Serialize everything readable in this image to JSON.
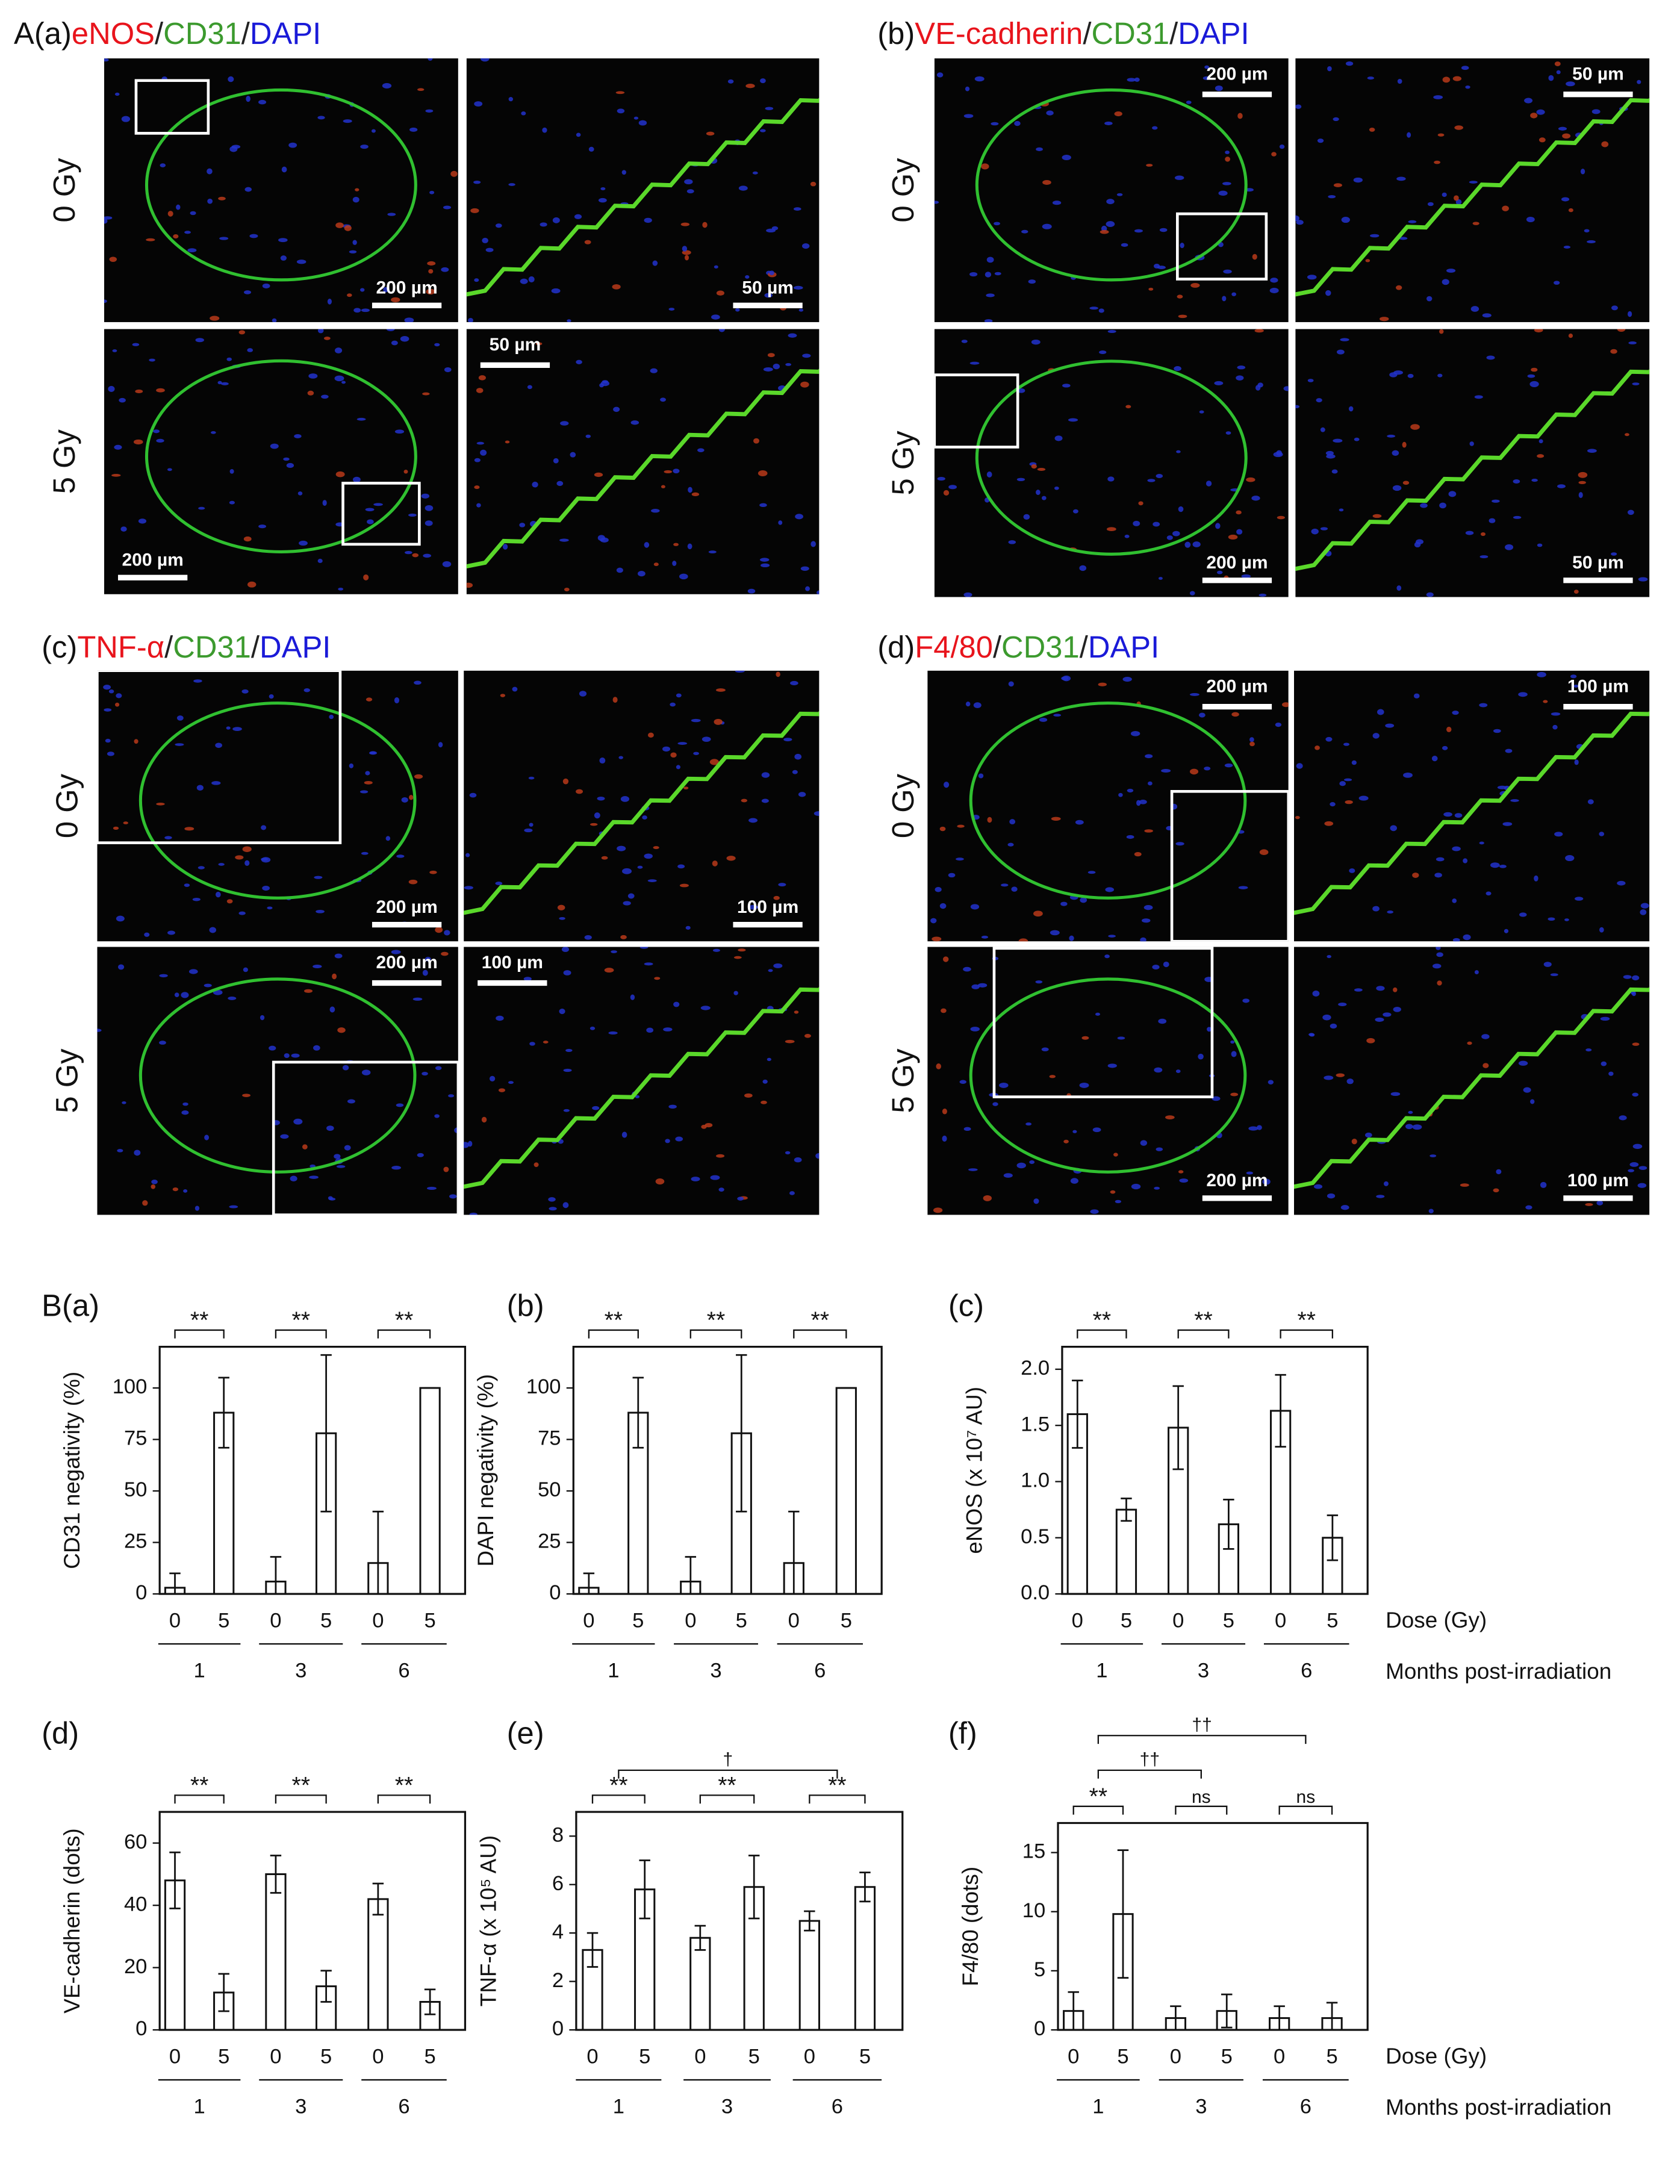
{
  "panel_a": [
    {
      "label": "A(a)",
      "title": [
        {
          "text": "eNOS",
          "color": "#e8141c"
        },
        {
          "text": "/",
          "color": "#222222"
        },
        {
          "text": "CD31",
          "color": "#3c9a2e"
        },
        {
          "text": "/",
          "color": "#222222"
        },
        {
          "text": "DAPI",
          "color": "#1a1ad8"
        }
      ],
      "rows": [
        "0 Gy",
        "5 Gy"
      ],
      "scale_bars": [
        "200 µm",
        "50 µm",
        "200 µm",
        "50 µm"
      ]
    },
    {
      "label": "(b)",
      "title": [
        {
          "text": "VE-cadherin",
          "color": "#e8141c"
        },
        {
          "text": "/",
          "color": "#222222"
        },
        {
          "text": "CD31",
          "color": "#3c9a2e"
        },
        {
          "text": "/",
          "color": "#222222"
        },
        {
          "text": "DAPI",
          "color": "#1a1ad8"
        }
      ],
      "rows": [
        "0 Gy",
        "5 Gy"
      ],
      "scale_bars": [
        "200 µm",
        "50 µm",
        "200 µm",
        "50 µm"
      ]
    },
    {
      "label": "(c)",
      "title": [
        {
          "text": "TNF-α",
          "color": "#e8141c"
        },
        {
          "text": "/",
          "color": "#222222"
        },
        {
          "text": "CD31",
          "color": "#3c9a2e"
        },
        {
          "text": "/",
          "color": "#222222"
        },
        {
          "text": "DAPI",
          "color": "#1a1ad8"
        }
      ],
      "rows": [
        "0 Gy",
        "5 Gy"
      ],
      "scale_bars": [
        "200 µm",
        "100 µm",
        "200 µm",
        "100 µm"
      ]
    },
    {
      "label": "(d)",
      "title": [
        {
          "text": "F4/80",
          "color": "#e8141c"
        },
        {
          "text": "/",
          "color": "#222222"
        },
        {
          "text": "CD31",
          "color": "#3c9a2e"
        },
        {
          "text": "/",
          "color": "#222222"
        },
        {
          "text": "DAPI",
          "color": "#1a1ad8"
        }
      ],
      "rows": [
        "0 Gy",
        "5 Gy"
      ],
      "scale_bars": [
        "200 µm",
        "100 µm",
        "200 µm",
        "100 µm"
      ]
    }
  ],
  "chart_data": [
    {
      "type": "bar",
      "label": "B(a)",
      "ylabel": "CD31 negativity (%)",
      "categories": [
        "0",
        "5",
        "0",
        "5",
        "0",
        "5"
      ],
      "groups": [
        "1",
        "3",
        "6"
      ],
      "values": [
        3,
        88,
        6,
        78,
        15,
        100
      ],
      "errors": [
        7,
        17,
        12,
        38,
        25,
        0
      ],
      "significance": [
        "**",
        "**",
        "**"
      ],
      "ylim": [
        0,
        120
      ],
      "yticks": [
        0,
        25,
        50,
        75,
        100
      ],
      "color": "#ffffff"
    },
    {
      "type": "bar",
      "label": "(b)",
      "ylabel": "DAPI negativity (%)",
      "categories": [
        "0",
        "5",
        "0",
        "5",
        "0",
        "5"
      ],
      "groups": [
        "1",
        "3",
        "6"
      ],
      "values": [
        3,
        88,
        6,
        78,
        15,
        100
      ],
      "errors": [
        7,
        17,
        12,
        38,
        25,
        0
      ],
      "significance": [
        "**",
        "**",
        "**"
      ],
      "ylim": [
        0,
        120
      ],
      "yticks": [
        0,
        25,
        50,
        75,
        100
      ],
      "color": "#ffffff"
    },
    {
      "type": "bar",
      "label": "(c)",
      "ylabel": "eNOS (x 10⁷ AU)",
      "categories": [
        "0",
        "5",
        "0",
        "5",
        "0",
        "5"
      ],
      "groups": [
        "1",
        "3",
        "6"
      ],
      "values": [
        1.6,
        0.75,
        1.48,
        0.62,
        1.63,
        0.5
      ],
      "errors": [
        0.3,
        0.1,
        0.37,
        0.22,
        0.32,
        0.2
      ],
      "significance": [
        "**",
        "**",
        "**"
      ],
      "ylim": [
        0,
        2.2
      ],
      "yticks": [
        {
          "value": 0,
          "label": "0.0"
        },
        {
          "value": 0.5,
          "label": "0.5"
        },
        {
          "value": 1,
          "label": "1.0"
        },
        {
          "value": 1.5,
          "label": "1.5"
        },
        {
          "value": 2,
          "label": "2.0"
        }
      ],
      "color": "#ffffff",
      "xlabel": "Dose (Gy)",
      "group_label": "Months post-irradiation"
    },
    {
      "type": "bar",
      "label": "(d)",
      "ylabel": "VE-cadherin (dots)",
      "categories": [
        "0",
        "5",
        "0",
        "5",
        "0",
        "5"
      ],
      "groups": [
        "1",
        "3",
        "6"
      ],
      "values": [
        48,
        12,
        50,
        14,
        42,
        9
      ],
      "errors": [
        9,
        6,
        6,
        5,
        5,
        4
      ],
      "significance": [
        "**",
        "**",
        "**"
      ],
      "ylim": [
        0,
        70
      ],
      "yticks": [
        0,
        20,
        40,
        60
      ],
      "color": "#ffffff"
    },
    {
      "type": "bar",
      "label": "(e)",
      "ylabel": "TNF-α (x 10⁵ AU)",
      "categories": [
        "0",
        "5",
        "0",
        "5",
        "0",
        "5"
      ],
      "groups": [
        "1",
        "3",
        "6"
      ],
      "values": [
        3.3,
        5.8,
        3.8,
        5.9,
        4.5,
        5.9
      ],
      "errors": [
        0.7,
        1.2,
        0.5,
        1.3,
        0.4,
        0.6
      ],
      "significance": [
        "**",
        "**",
        "**"
      ],
      "trend": [
        "†"
      ],
      "ylim": [
        0,
        9
      ],
      "yticks": [
        0,
        2,
        4,
        6,
        8
      ],
      "color": "#ffffff"
    },
    {
      "type": "bar",
      "label": "(f)",
      "ylabel": "F4/80 (dots)",
      "categories": [
        "0",
        "5",
        "0",
        "5",
        "0",
        "5"
      ],
      "groups": [
        "1",
        "3",
        "6"
      ],
      "values": [
        1.6,
        9.8,
        1,
        1.6,
        1,
        1
      ],
      "errors": [
        1.6,
        5.4,
        1,
        1.4,
        1,
        1.3
      ],
      "significance": [
        "**",
        "ns",
        "ns"
      ],
      "trend": [
        "††",
        "††"
      ],
      "ylim": [
        0,
        17.5
      ],
      "yticks": [
        0,
        5,
        10,
        15
      ],
      "color": "#ffffff",
      "xlabel": "Dose (Gy)",
      "group_label": "Months post-irradiation"
    }
  ]
}
